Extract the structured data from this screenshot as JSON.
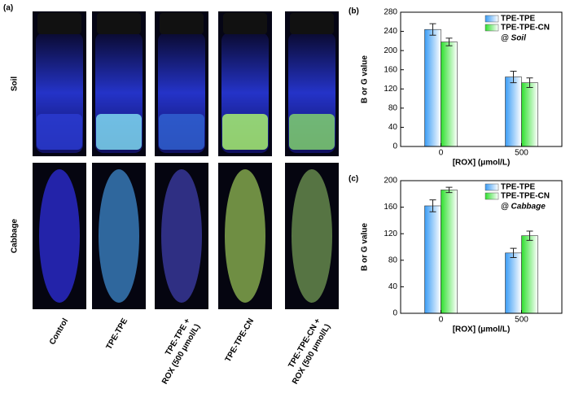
{
  "panel_a": {
    "label": "(a)",
    "rows": [
      "Soil",
      "Cabbage"
    ],
    "columns": [
      [
        "Control"
      ],
      [
        "TPE-TPE"
      ],
      [
        "TPE-TPE +",
        "ROX (500 μmol/L)"
      ],
      [
        "TPE-TPE-CN"
      ],
      [
        "TPE-TPE-CN +",
        "ROX (500 μmol/L)"
      ]
    ]
  },
  "chart_data": [
    {
      "type": "bar",
      "panel": "(b)",
      "annotation": "@ Soil",
      "x_label": "[ROX] (μmol/L)",
      "y_label": "B or G value",
      "categories": [
        "0",
        "500"
      ],
      "series": [
        {
          "name": "TPE-TPE",
          "color": "#3a9cf5",
          "values": [
            244,
            145
          ],
          "errors": [
            12,
            12
          ]
        },
        {
          "name": "TPE-TPE-CN",
          "color": "#2ee02e",
          "values": [
            218,
            133
          ],
          "errors": [
            8,
            10
          ]
        }
      ],
      "ylim": [
        0,
        280
      ],
      "yticks": [
        0,
        40,
        80,
        120,
        160,
        200,
        240,
        280
      ]
    },
    {
      "type": "bar",
      "panel": "(c)",
      "annotation": "@ Cabbage",
      "x_label": "[ROX] (μmol/L)",
      "y_label": "B or G value",
      "categories": [
        "0",
        "500"
      ],
      "series": [
        {
          "name": "TPE-TPE",
          "color": "#3a9cf5",
          "values": [
            162,
            91
          ],
          "errors": [
            9,
            7
          ]
        },
        {
          "name": "TPE-TPE-CN",
          "color": "#2ee02e",
          "values": [
            186,
            117
          ],
          "errors": [
            4,
            7
          ]
        }
      ],
      "ylim": [
        0,
        200
      ],
      "yticks": [
        0,
        40,
        80,
        120,
        160,
        200
      ]
    }
  ]
}
